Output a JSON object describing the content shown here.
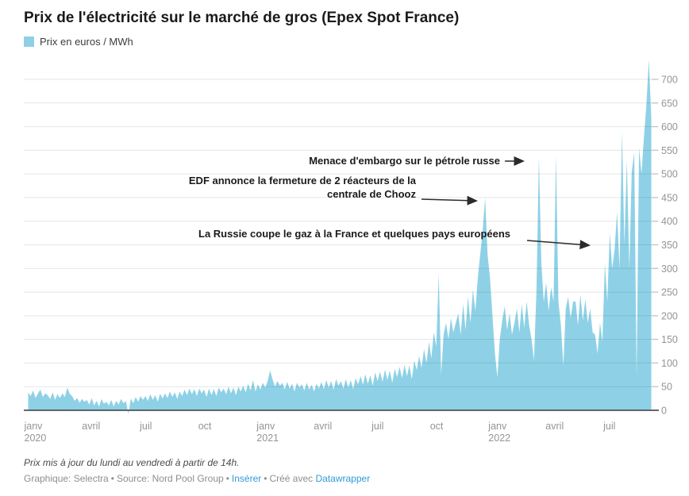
{
  "header": {
    "title": "Prix de l'électricité sur le marché de gros (Epex Spot France)",
    "legend_label": "Prix en euros / MWh"
  },
  "colors": {
    "area": "#8ed1e6",
    "baseline": "#3a3a3a",
    "grid": "rgba(0,0,0,0.10)",
    "tick": "#c4c4c4",
    "axis_text": "#949494",
    "annotation_text": "#1a1a1a",
    "arrow": "#2b2b2b",
    "link": "#2e9bd6"
  },
  "chart_data": {
    "type": "area",
    "title": "Prix de l'électricité sur le marché de gros (Epex Spot France)",
    "series_name": "Prix en euros / MWh",
    "ylabel": "Prix en euros / MWh",
    "xlabel": "",
    "ylim": [
      0,
      750
    ],
    "y_ticks": [
      0,
      50,
      100,
      150,
      200,
      250,
      300,
      350,
      400,
      450,
      500,
      550,
      600,
      650,
      700
    ],
    "grid": true,
    "legend_position": "top-left",
    "x_start": "janv 2020",
    "x_end": "août 2022",
    "points_per_month": 8,
    "x_ticks": [
      {
        "month": "janv",
        "year": "2020",
        "day_offset": 0
      },
      {
        "month": "avril",
        "year": "",
        "day_offset": 91
      },
      {
        "month": "juil",
        "year": "",
        "day_offset": 182
      },
      {
        "month": "oct",
        "year": "",
        "day_offset": 274
      },
      {
        "month": "janv",
        "year": "2021",
        "day_offset": 366
      },
      {
        "month": "avril",
        "year": "",
        "day_offset": 456
      },
      {
        "month": "juil",
        "year": "",
        "day_offset": 547
      },
      {
        "month": "oct",
        "year": "",
        "day_offset": 639
      },
      {
        "month": "janv",
        "year": "2022",
        "day_offset": 731
      },
      {
        "month": "avril",
        "year": "",
        "day_offset": 821
      },
      {
        "month": "juil",
        "year": "",
        "day_offset": 912
      }
    ],
    "values": [
      38,
      30,
      42,
      26,
      35,
      44,
      28,
      36,
      32,
      24,
      38,
      22,
      34,
      26,
      36,
      28,
      48,
      35,
      30,
      20,
      26,
      16,
      24,
      18,
      22,
      12,
      26,
      10,
      20,
      8,
      24,
      14,
      18,
      10,
      22,
      8,
      20,
      12,
      24,
      15,
      20,
      -8,
      25,
      15,
      28,
      18,
      30,
      22,
      30,
      20,
      34,
      22,
      32,
      18,
      35,
      25,
      36,
      26,
      40,
      28,
      38,
      24,
      40,
      30,
      44,
      32,
      46,
      34,
      45,
      30,
      46,
      36,
      44,
      28,
      46,
      32,
      45,
      30,
      48,
      38,
      46,
      34,
      50,
      36,
      48,
      32,
      50,
      40,
      52,
      38,
      56,
      42,
      64,
      40,
      55,
      44,
      58,
      48,
      62,
      84,
      66,
      50,
      62,
      52,
      58,
      44,
      60,
      46,
      56,
      40,
      58,
      48,
      55,
      42,
      58,
      44,
      54,
      40,
      56,
      46,
      60,
      45,
      64,
      48,
      62,
      44,
      66,
      52,
      62,
      46,
      66,
      48,
      64,
      45,
      68,
      55,
      72,
      54,
      76,
      56,
      74,
      52,
      80,
      62,
      82,
      60,
      86,
      64,
      84,
      58,
      88,
      70,
      92,
      68,
      96,
      72,
      95,
      66,
      105,
      85,
      115,
      90,
      130,
      100,
      145,
      110,
      165,
      135,
      288,
      75,
      160,
      185,
      150,
      195,
      165,
      185,
      205,
      160,
      225,
      170,
      240,
      185,
      255,
      210,
      280,
      330,
      380,
      450,
      330,
      280,
      200,
      120,
      70,
      150,
      190,
      220,
      170,
      205,
      160,
      185,
      215,
      165,
      225,
      175,
      230,
      180,
      150,
      105,
      250,
      535,
      310,
      230,
      270,
      210,
      260,
      230,
      540,
      230,
      180,
      95,
      215,
      240,
      195,
      230,
      230,
      180,
      245,
      190,
      235,
      185,
      215,
      165,
      160,
      120,
      185,
      145,
      310,
      230,
      375,
      300,
      340,
      420,
      300,
      590,
      350,
      530,
      300,
      505,
      545,
      70,
      555,
      500,
      580,
      645,
      742,
      620
    ],
    "annotations": [
      {
        "lines": [
          "Menace d'embargo sur le pétrole russe"
        ]
      },
      {
        "lines": [
          "EDF annonce la fermeture de 2 réacteurs de la",
          "centrale de Chooz"
        ]
      },
      {
        "lines": [
          "La Russie coupe le gaz à la France et quelques pays européens"
        ]
      }
    ]
  },
  "footer": {
    "update_note": "Prix mis à jour du lundi au vendredi à partir de 14h.",
    "graphique": "Graphique: Selectra",
    "source": "Source: Nord Pool Group",
    "embed_link": "Insérer",
    "made_with": "Créé avec",
    "tool_link": "Datawrapper",
    "separator": "•"
  }
}
